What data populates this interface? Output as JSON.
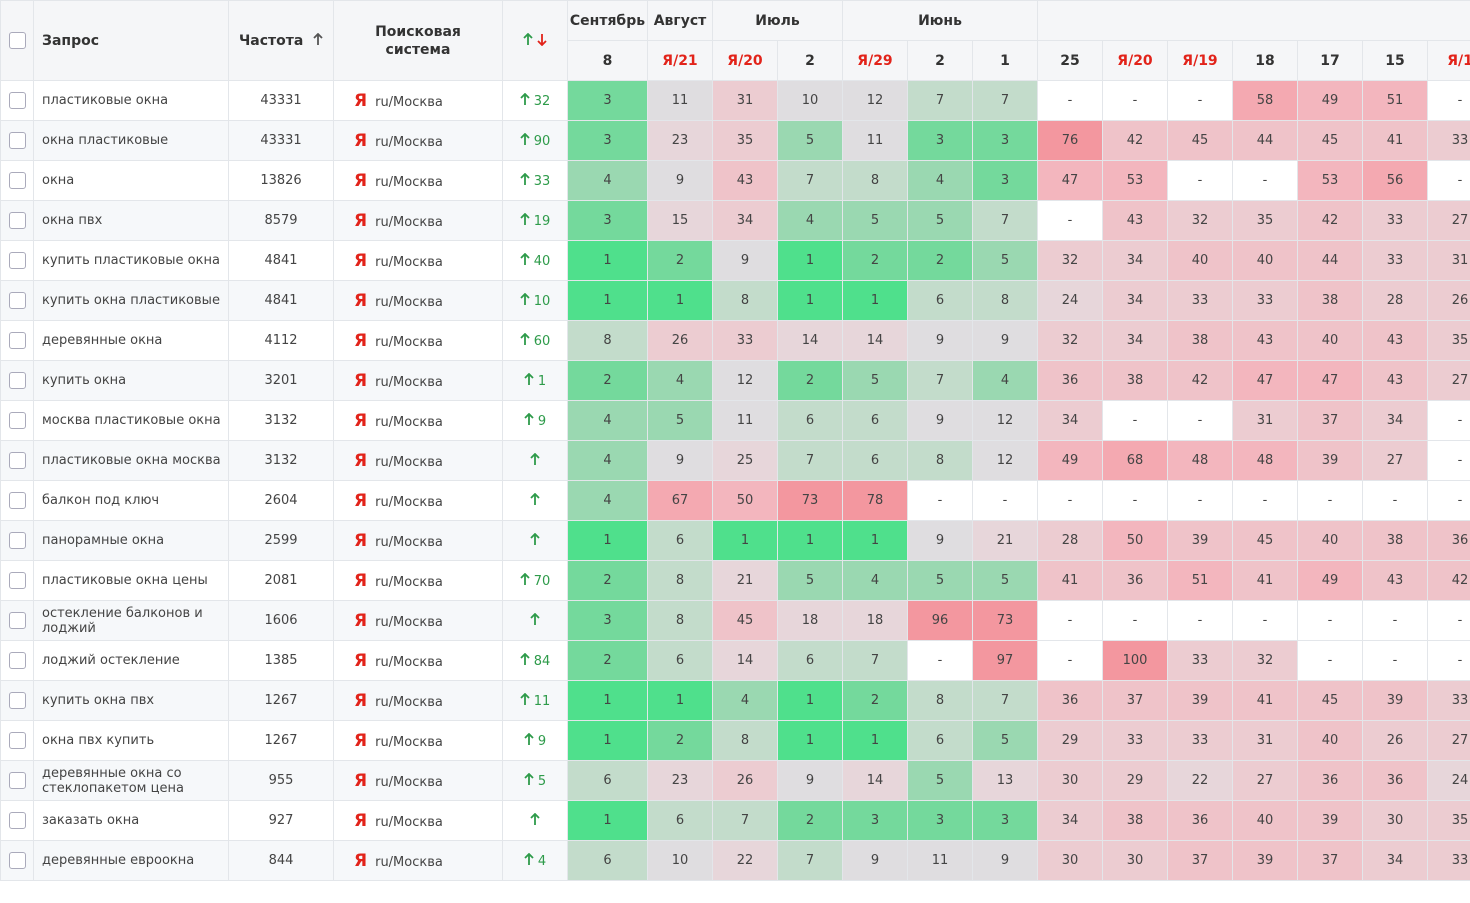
{
  "header": {
    "query": "Запрос",
    "frequency": "Частота",
    "engine": "Поисковая система",
    "months": [
      "Сентябрь",
      "Август",
      "Июль",
      "Июнь"
    ],
    "columns": [
      "8",
      "Я/21",
      "Я/20",
      "2",
      "Я/29",
      "2",
      "1",
      "25",
      "Я/20",
      "Я/19",
      "18",
      "17",
      "15",
      "Я/1"
    ]
  },
  "engine_icon": "Я",
  "rows": [
    {
      "query": "пластиковые окна",
      "frequency": 43331,
      "engine": "ru/Москва",
      "change": 32,
      "positions": [
        3,
        11,
        31,
        10,
        12,
        7,
        7,
        "-",
        "-",
        "-",
        58,
        49,
        51,
        "-"
      ]
    },
    {
      "query": "окна пластиковые",
      "frequency": 43331,
      "engine": "ru/Москва",
      "change": 90,
      "positions": [
        3,
        23,
        35,
        5,
        11,
        3,
        3,
        76,
        42,
        45,
        44,
        45,
        41,
        33
      ]
    },
    {
      "query": "окна",
      "frequency": 13826,
      "engine": "ru/Москва",
      "change": 33,
      "positions": [
        4,
        9,
        43,
        7,
        8,
        4,
        3,
        47,
        53,
        "-",
        "-",
        53,
        56,
        "-"
      ]
    },
    {
      "query": "окна пвх",
      "frequency": 8579,
      "engine": "ru/Москва",
      "change": 19,
      "positions": [
        3,
        15,
        34,
        4,
        5,
        5,
        7,
        "-",
        43,
        32,
        35,
        42,
        33,
        27
      ]
    },
    {
      "query": "купить пластиковые окна",
      "frequency": 4841,
      "engine": "ru/Москва",
      "change": 40,
      "positions": [
        1,
        2,
        9,
        1,
        2,
        2,
        5,
        32,
        34,
        40,
        40,
        44,
        33,
        31
      ]
    },
    {
      "query": "купить окна пластиковые",
      "frequency": 4841,
      "engine": "ru/Москва",
      "change": 10,
      "positions": [
        1,
        1,
        8,
        1,
        1,
        6,
        8,
        24,
        34,
        33,
        33,
        38,
        28,
        26
      ]
    },
    {
      "query": "деревянные окна",
      "frequency": 4112,
      "engine": "ru/Москва",
      "change": 60,
      "positions": [
        8,
        26,
        33,
        14,
        14,
        9,
        9,
        32,
        34,
        38,
        43,
        40,
        43,
        35
      ]
    },
    {
      "query": "купить окна",
      "frequency": 3201,
      "engine": "ru/Москва",
      "change": 1,
      "positions": [
        2,
        4,
        12,
        2,
        5,
        7,
        4,
        36,
        38,
        42,
        47,
        47,
        43,
        27
      ]
    },
    {
      "query": "москва пластиковые окна",
      "frequency": 3132,
      "engine": "ru/Москва",
      "change": 9,
      "positions": [
        4,
        5,
        11,
        6,
        6,
        9,
        12,
        34,
        "-",
        "-",
        31,
        37,
        34,
        "-"
      ]
    },
    {
      "query": "пластиковые окна москва",
      "frequency": 3132,
      "engine": "ru/Москва",
      "change": null,
      "positions": [
        4,
        9,
        25,
        7,
        6,
        8,
        12,
        49,
        68,
        48,
        48,
        39,
        27,
        "-"
      ]
    },
    {
      "query": "балкон под ключ",
      "frequency": 2604,
      "engine": "ru/Москва",
      "change": null,
      "positions": [
        4,
        67,
        50,
        73,
        78,
        "-",
        "-",
        "-",
        "-",
        "-",
        "-",
        "-",
        "-",
        "-"
      ]
    },
    {
      "query": "панорамные окна",
      "frequency": 2599,
      "engine": "ru/Москва",
      "change": null,
      "positions": [
        1,
        6,
        1,
        1,
        1,
        9,
        21,
        28,
        50,
        39,
        45,
        40,
        38,
        36
      ]
    },
    {
      "query": "пластиковые окна цены",
      "frequency": 2081,
      "engine": "ru/Москва",
      "change": 70,
      "positions": [
        2,
        8,
        21,
        5,
        4,
        5,
        5,
        41,
        36,
        51,
        41,
        49,
        43,
        42
      ]
    },
    {
      "query": "остекление балконов и лоджий",
      "frequency": 1606,
      "engine": "ru/Москва",
      "change": null,
      "positions": [
        3,
        8,
        45,
        18,
        18,
        96,
        73,
        "-",
        "-",
        "-",
        "-",
        "-",
        "-",
        "-"
      ]
    },
    {
      "query": "лоджий остекление",
      "frequency": 1385,
      "engine": "ru/Москва",
      "change": 84,
      "positions": [
        2,
        6,
        14,
        6,
        7,
        "-",
        97,
        "-",
        100,
        33,
        32,
        "-",
        "-",
        "-"
      ]
    },
    {
      "query": "купить окна пвх",
      "frequency": 1267,
      "engine": "ru/Москва",
      "change": 11,
      "positions": [
        1,
        1,
        4,
        1,
        2,
        8,
        7,
        36,
        37,
        39,
        41,
        45,
        39,
        33
      ]
    },
    {
      "query": "окна пвх купить",
      "frequency": 1267,
      "engine": "ru/Москва",
      "change": 9,
      "positions": [
        1,
        2,
        8,
        1,
        1,
        6,
        5,
        29,
        33,
        33,
        31,
        40,
        26,
        27
      ]
    },
    {
      "query": "деревянные окна со стеклопакетом цена",
      "frequency": 955,
      "engine": "ru/Москва",
      "change": 5,
      "positions": [
        6,
        23,
        26,
        9,
        14,
        5,
        13,
        30,
        29,
        22,
        27,
        36,
        36,
        24
      ]
    },
    {
      "query": "заказать окна",
      "frequency": 927,
      "engine": "ru/Москва",
      "change": null,
      "positions": [
        1,
        6,
        7,
        2,
        3,
        3,
        3,
        34,
        38,
        36,
        40,
        39,
        30,
        35
      ]
    },
    {
      "query": "деревянные евроокна",
      "frequency": 844,
      "engine": "ru/Москва",
      "change": 4,
      "positions": [
        6,
        10,
        22,
        7,
        9,
        11,
        9,
        30,
        30,
        37,
        39,
        37,
        34,
        33
      ]
    }
  ]
}
